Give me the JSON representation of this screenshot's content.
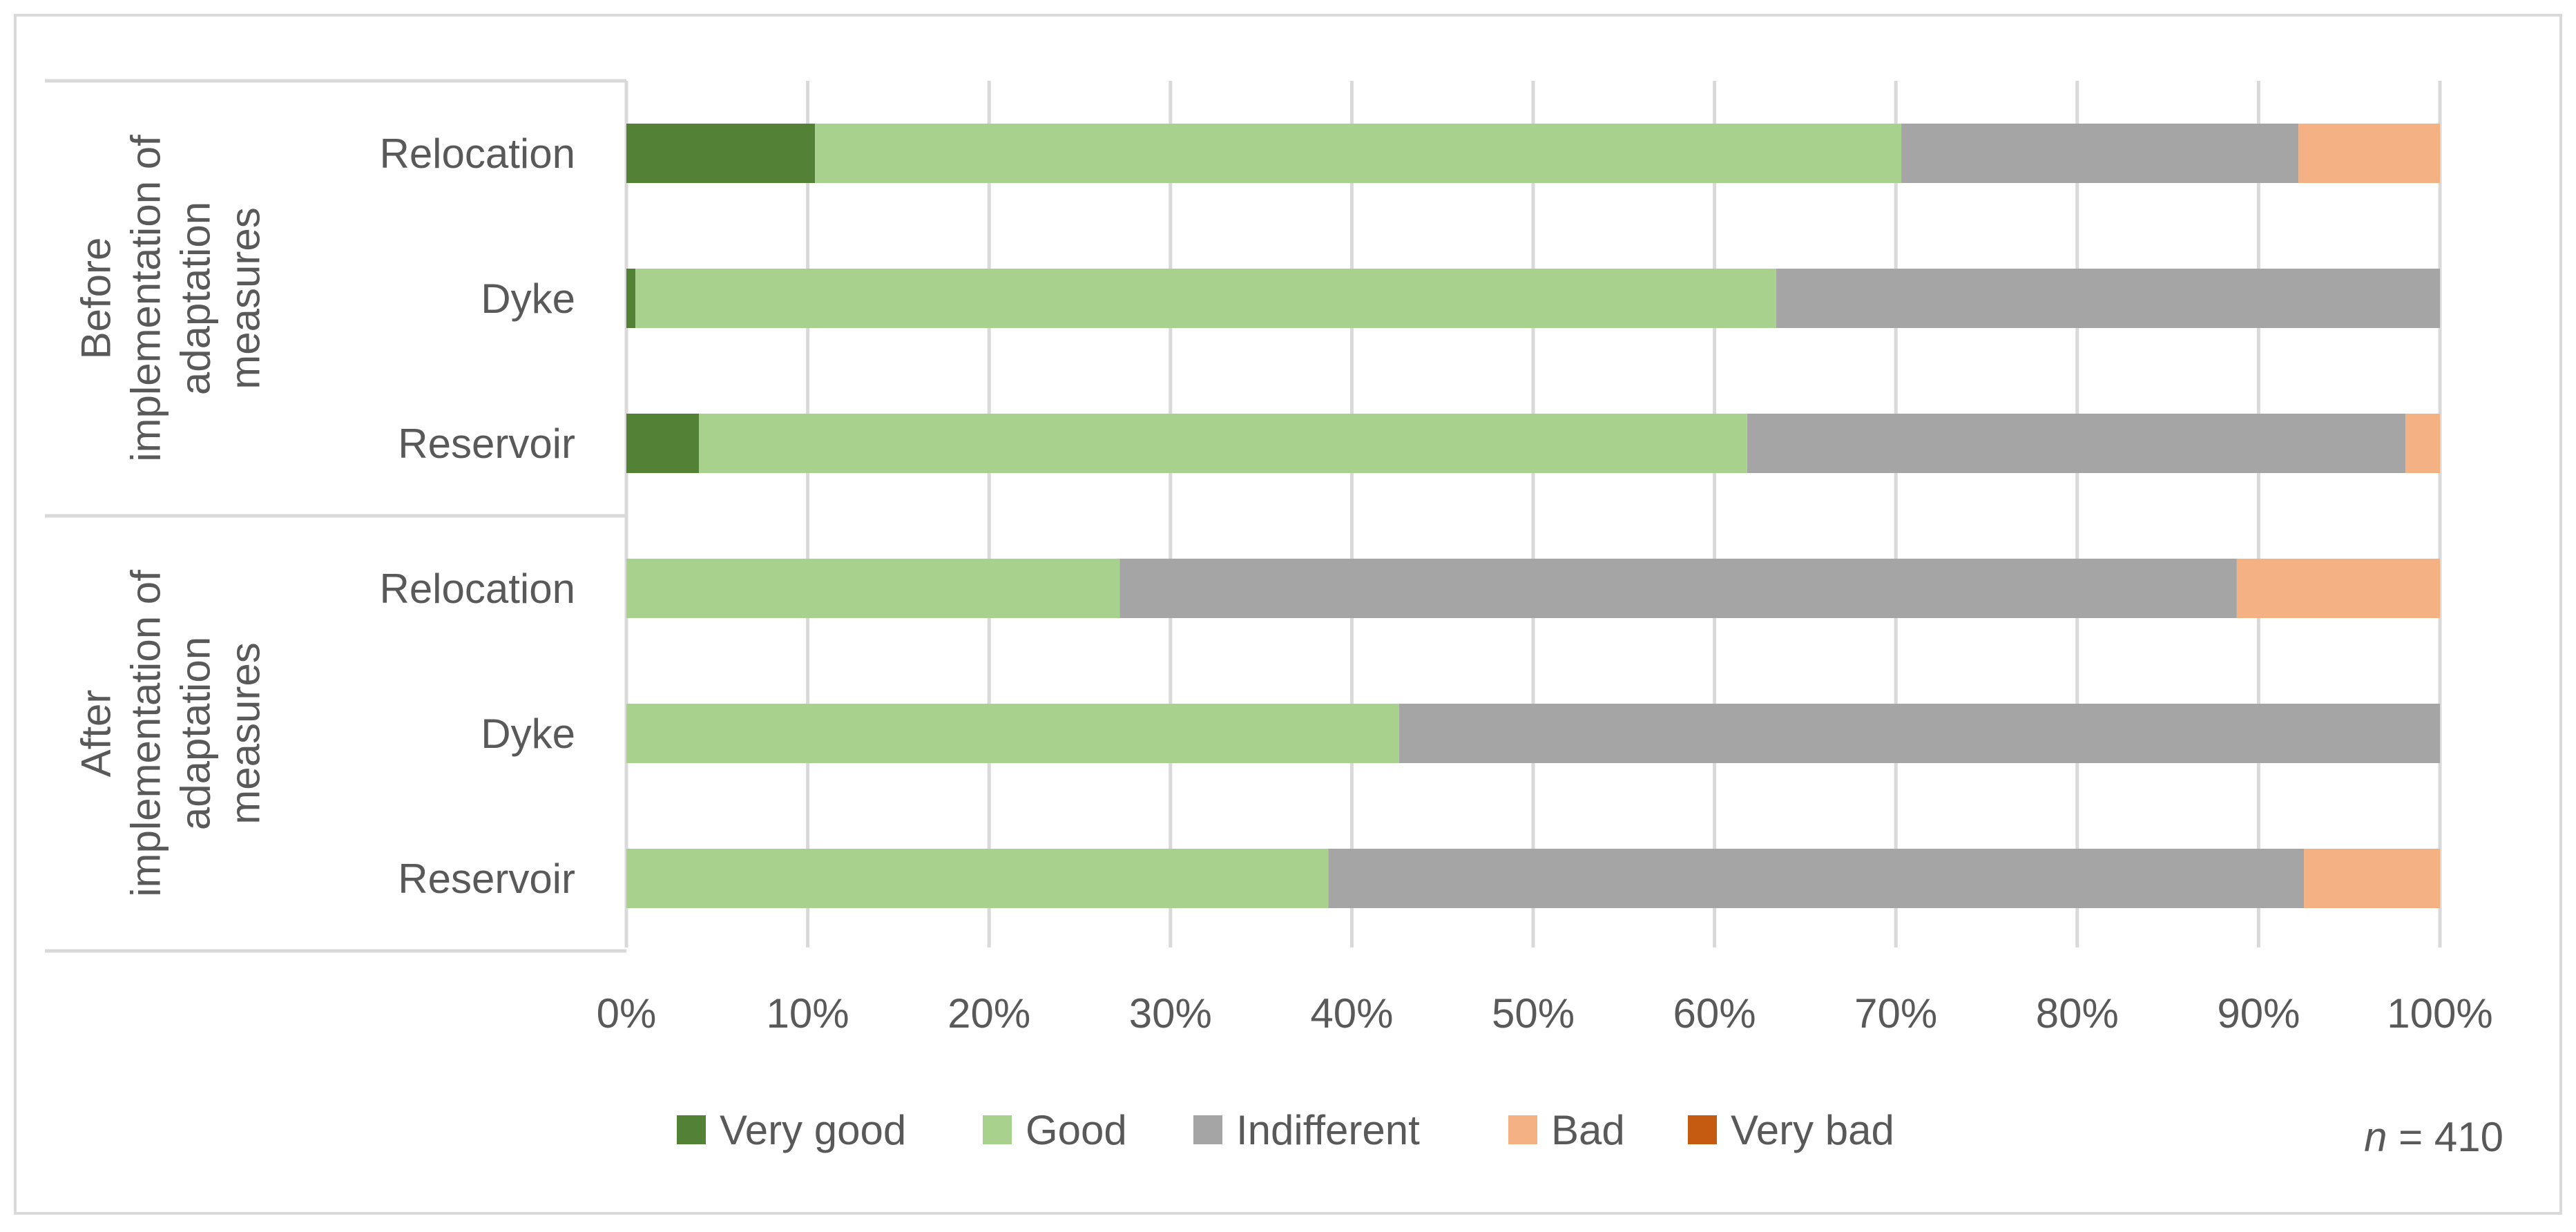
{
  "chart_data": {
    "type": "bar",
    "orientation": "horizontal",
    "stacked": "percent",
    "groups": [
      {
        "label": "Before implementation of adaptation measures",
        "label_lines": [
          "Before",
          "implementation of",
          "adaptation",
          "measures"
        ],
        "categories": [
          "Relocation",
          "Dyke",
          "Reservoir"
        ]
      },
      {
        "label": "After implementation of adaptation measures",
        "label_lines": [
          "After",
          "implementation of",
          "adaptation",
          "measures"
        ],
        "categories": [
          "Relocation",
          "Dyke",
          "Reservoir"
        ]
      }
    ],
    "series": [
      {
        "name": "Very good",
        "color": "#538135",
        "values": [
          10.4,
          0.5,
          4.0,
          0,
          0,
          0
        ]
      },
      {
        "name": "Good",
        "color": "#A9D18E",
        "values": [
          59.9,
          62.9,
          57.8,
          27.2,
          42.6,
          38.7
        ]
      },
      {
        "name": "Indifferent",
        "color": "#A5A5A5",
        "values": [
          21.9,
          36.6,
          36.3,
          61.6,
          57.4,
          53.8
        ]
      },
      {
        "name": "Bad",
        "color": "#F4B183",
        "values": [
          7.8,
          0,
          1.9,
          11.2,
          0,
          7.5
        ]
      },
      {
        "name": "Very bad",
        "color": "#C55A11",
        "values": [
          0,
          0,
          0,
          0,
          0,
          0
        ]
      }
    ],
    "xlim": [
      0,
      100
    ],
    "xticks": [
      "0%",
      "10%",
      "20%",
      "30%",
      "40%",
      "50%",
      "60%",
      "70%",
      "80%",
      "90%",
      "100%"
    ],
    "grid": true,
    "legend": "bottom",
    "title": "",
    "xlabel": "",
    "ylabel": ""
  },
  "annotation": {
    "prefix": "n",
    "text": " = 410"
  }
}
